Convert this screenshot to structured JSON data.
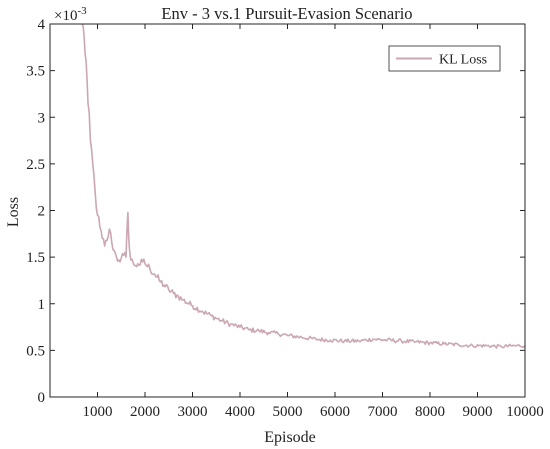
{
  "chart_data": {
    "type": "line",
    "title": "Env - 3 vs.1 Pursuit-Evasion Scenario",
    "xlabel": "Episode",
    "ylabel": "Loss",
    "exponent_base": "×10",
    "exponent_power": "-3",
    "xlim": [
      0,
      10000
    ],
    "ylim": [
      0,
      4
    ],
    "x_ticks": [
      1000,
      2000,
      3000,
      4000,
      5000,
      6000,
      7000,
      8000,
      9000,
      10000
    ],
    "y_ticks": [
      0,
      0.5,
      1,
      1.5,
      2,
      2.5,
      3,
      3.5,
      4
    ],
    "grid": false,
    "legend_position": "top-right",
    "series": [
      {
        "name": "KL Loss",
        "color": "#cba7b1",
        "x": [
          680,
          720,
          760,
          800,
          850,
          900,
          950,
          1000,
          1050,
          1100,
          1150,
          1200,
          1250,
          1300,
          1350,
          1400,
          1450,
          1500,
          1550,
          1600,
          1640,
          1670,
          1700,
          1750,
          1800,
          1850,
          1900,
          1950,
          2000,
          2100,
          2200,
          2300,
          2400,
          2500,
          2600,
          2700,
          2800,
          3000,
          3200,
          3400,
          3600,
          3800,
          4000,
          4200,
          4400,
          4600,
          4800,
          5000,
          5300,
          5600,
          5900,
          6200,
          6500,
          6800,
          7100,
          7400,
          7700,
          8000,
          8300,
          8600,
          8900,
          9200,
          9500,
          9800,
          10000
        ],
        "values": [
          4.0,
          3.85,
          3.6,
          3.15,
          2.75,
          2.5,
          2.2,
          1.95,
          1.82,
          1.7,
          1.62,
          1.68,
          1.8,
          1.66,
          1.57,
          1.5,
          1.47,
          1.49,
          1.52,
          1.5,
          1.98,
          1.6,
          1.47,
          1.44,
          1.41,
          1.43,
          1.42,
          1.45,
          1.43,
          1.38,
          1.32,
          1.25,
          1.2,
          1.15,
          1.11,
          1.08,
          1.04,
          0.98,
          0.92,
          0.87,
          0.82,
          0.78,
          0.75,
          0.72,
          0.71,
          0.69,
          0.68,
          0.66,
          0.64,
          0.62,
          0.61,
          0.6,
          0.6,
          0.62,
          0.61,
          0.6,
          0.59,
          0.58,
          0.57,
          0.56,
          0.55,
          0.55,
          0.54,
          0.55,
          0.55
        ]
      }
    ]
  }
}
